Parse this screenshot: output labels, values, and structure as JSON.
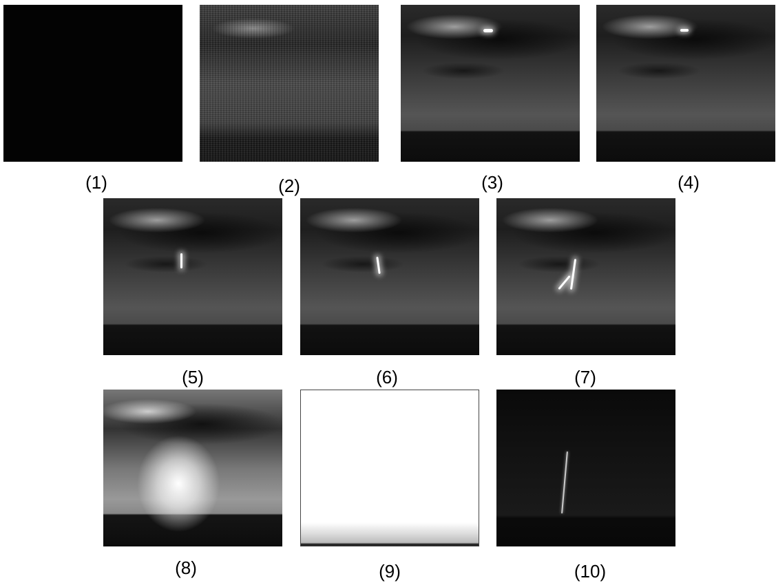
{
  "panels": [
    {
      "label": "(1)"
    },
    {
      "label": "(2)"
    },
    {
      "label": "(3)"
    },
    {
      "label": "(4)"
    },
    {
      "label": "(5)"
    },
    {
      "label": "(6)"
    },
    {
      "label": "(7)"
    },
    {
      "label": "(8)"
    },
    {
      "label": "(9)"
    },
    {
      "label": "(10)"
    }
  ]
}
